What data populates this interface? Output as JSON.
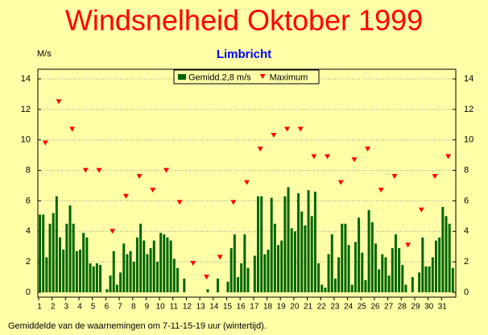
{
  "chart_data": {
    "type": "bar",
    "title": "Windsnelheid Oktober 1999",
    "subtitle": "Limbricht",
    "y_label": "M/s",
    "footnote": "Gemiddelde van de waarnemingen om 7-11-15-19 uur (wintertijd).",
    "categories": [
      "1",
      "2",
      "3",
      "4",
      "5",
      "6",
      "7",
      "8",
      "9",
      "10",
      "11",
      "12",
      "13",
      "14",
      "15",
      "16",
      "17",
      "18",
      "19",
      "20",
      "21",
      "22",
      "23",
      "24",
      "25",
      "26",
      "27",
      "28",
      "29",
      "30",
      "31"
    ],
    "series": [
      {
        "name": "Gemidd.2,8 m/s",
        "color": "#006600",
        "type": "bar",
        "values": [
          [
            5.1,
            5.1,
            2.3,
            4.5
          ],
          [
            5.2,
            6.3,
            3.6,
            2.8
          ],
          [
            4.5,
            5.7,
            4.5,
            2.7
          ],
          [
            2.8,
            3.9,
            3.6,
            1.9
          ],
          [
            1.7,
            1.9,
            1.8,
            0
          ],
          [
            0.2,
            1.1,
            2.7,
            0.5
          ],
          [
            1.3,
            3.2,
            2.5,
            2.7
          ],
          [
            2.0,
            3.6,
            4.5,
            3.4
          ],
          [
            2.5,
            2.9,
            3.4,
            2.0
          ],
          [
            3.9,
            3.8,
            3.6,
            3.4
          ],
          [
            2.2,
            1.6,
            0,
            0.9
          ],
          [
            0,
            0,
            0,
            0
          ],
          [
            0,
            0,
            0.2,
            0
          ],
          [
            0,
            0.9,
            0,
            0
          ],
          [
            0.7,
            2.9,
            3.8,
            1.0
          ],
          [
            1.9,
            3.8,
            1.6,
            0
          ],
          [
            2.4,
            6.3,
            6.3,
            2.5
          ],
          [
            2.8,
            6.2,
            4.5,
            3.1
          ],
          [
            3.4,
            6.3,
            6.9,
            4.2
          ],
          [
            4.0,
            6.5,
            5.3,
            4.4
          ],
          [
            6.7,
            5.0,
            6.6,
            1.9
          ],
          [
            0.5,
            0.3,
            2.5,
            3.8
          ],
          [
            0.9,
            2.3,
            4.5,
            4.5
          ],
          [
            3.1,
            0.5,
            3.3,
            4.9
          ],
          [
            2.6,
            0.8,
            5.4,
            4.6
          ],
          [
            3.2,
            1.5,
            2.5,
            2.3
          ],
          [
            1.1,
            2.9,
            3.8,
            2.9
          ],
          [
            1.8,
            0.5,
            0,
            1.0
          ],
          [
            0,
            1.3,
            3.6,
            1.7
          ],
          [
            1.7,
            2.3,
            3.4,
            3.6
          ],
          [
            5.6,
            5.0,
            4.5,
            1.6
          ]
        ]
      },
      {
        "name": "Maximum",
        "color": "#ff0000",
        "type": "marker",
        "values": [
          9.8,
          12.5,
          10.7,
          8.0,
          8.0,
          4.0,
          6.3,
          7.6,
          6.7,
          8.0,
          5.9,
          1.9,
          1.0,
          2.3,
          5.9,
          7.2,
          9.4,
          10.3,
          10.7,
          10.7,
          8.9,
          8.9,
          7.2,
          8.7,
          9.4,
          6.7,
          7.6,
          3.1,
          5.4,
          7.6,
          8.9
        ]
      }
    ],
    "ylim": [
      0,
      14
    ],
    "yticks": [
      0,
      2,
      4,
      6,
      8,
      10,
      12,
      14
    ],
    "grid": true
  }
}
